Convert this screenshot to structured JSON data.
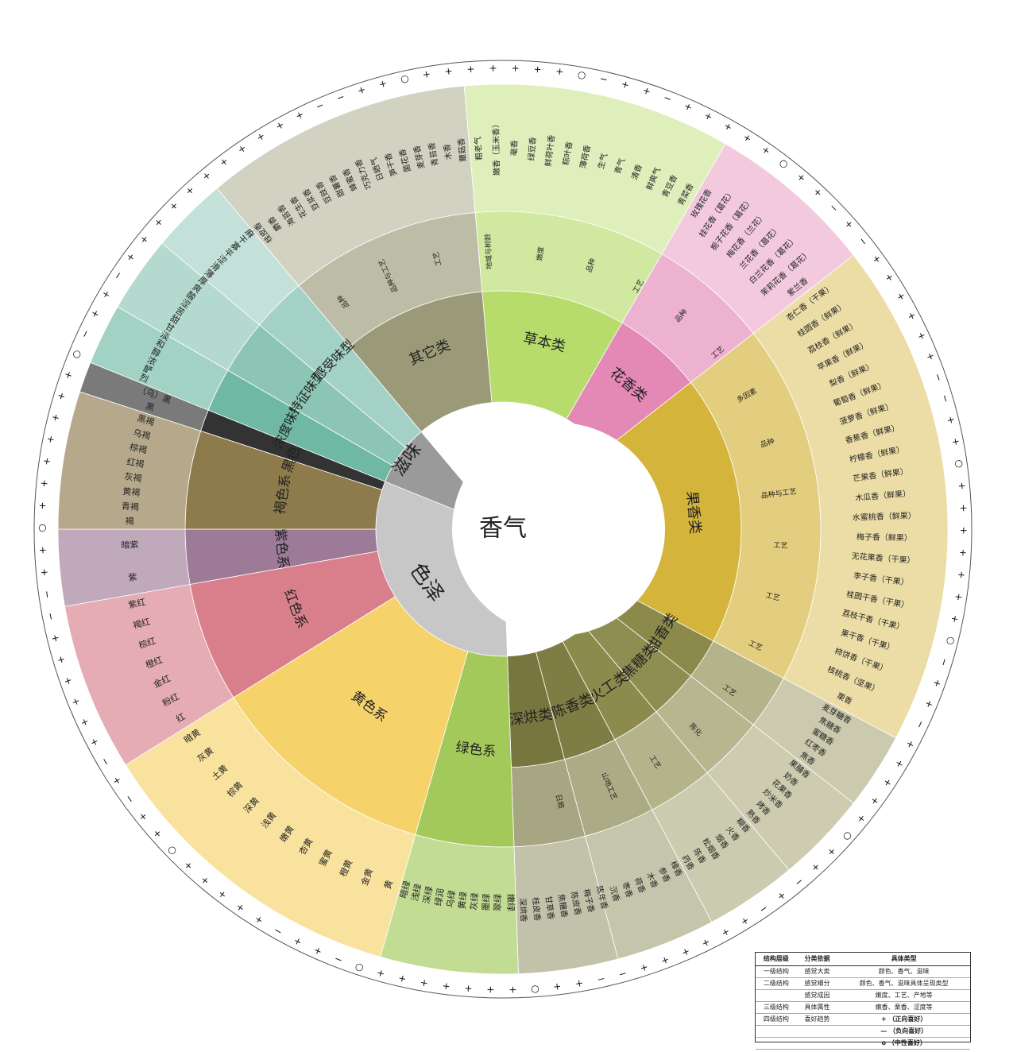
{
  "center": {
    "label": "香气"
  },
  "level1": [
    {
      "label": "香气",
      "color": "#ffffff"
    },
    {
      "label": "色泽",
      "color": "#c7c7c7"
    },
    {
      "label": "滋味",
      "color": "#9a9a9a"
    }
  ],
  "level2_color": [
    {
      "label": "绿色系",
      "color": "#a3c95a",
      "items": [
        "嫩绿",
        "翠绿",
        "墨绿",
        "灰绿",
        "黄绿",
        "乌绿",
        "绿润",
        "深绿",
        "浅绿",
        "暗绿"
      ]
    },
    {
      "label": "黄色系",
      "color": "#f6d26a",
      "items": [
        "黄",
        "金黄",
        "橙黄",
        "蜜黄",
        "杏黄",
        "嫩黄",
        "浅黄",
        "深黄",
        "棕黄",
        "土黄",
        "灰黄",
        "暗黄"
      ]
    },
    {
      "label": "红色系",
      "color": "#d97f8c",
      "items": [
        "红",
        "粉红",
        "金红",
        "橙红",
        "棕红",
        "褐红",
        "紫红"
      ]
    },
    {
      "label": "紫色系",
      "color": "#9d7a97",
      "items": [
        "紫",
        "暗紫"
      ]
    },
    {
      "label": "褐色系",
      "color": "#8e7b4c",
      "items": [
        "褐",
        "青褐",
        "黄褐",
        "灰褐",
        "红褐",
        "棕褐",
        "乌褐",
        "黑褐"
      ]
    },
    {
      "label": "黑色系",
      "color": "#333333",
      "items": [
        "黑",
        "（乌）黑"
      ]
    }
  ],
  "level2_taste": [
    {
      "label": "浓度味型",
      "color": "#6fb9a4"
    },
    {
      "label": "特征味型",
      "color": "#8cc5b3"
    },
    {
      "label": "感受味型",
      "color": "#a4d1c5"
    }
  ],
  "taste_items": [
    "烈",
    "酽",
    "浓",
    "醇",
    "和",
    "淡",
    "甘",
    "甜",
    "苦",
    "涩",
    "酸",
    "爽",
    "厚",
    "薄",
    "滑",
    "涩",
    "平",
    "寡",
    "干",
    "麻"
  ],
  "aroma_cats": [
    {
      "label": "其它类",
      "color": "#9a9a78"
    },
    {
      "label": "草本类",
      "color": "#b7dc6b"
    },
    {
      "label": "花香类",
      "color": "#e488b6"
    },
    {
      "label": "果香类",
      "color": "#d4b43a"
    },
    {
      "label": "甜香类",
      "color": "#8b8a4a"
    },
    {
      "label": "焦糖类",
      "color": "#8f8e52"
    },
    {
      "label": "火工类",
      "color": "#8c8b4d"
    },
    {
      "label": "陈香类",
      "color": "#7e7d44"
    },
    {
      "label": "深烘类",
      "color": "#77763f"
    }
  ],
  "level3_labels": [
    "品种",
    "品种与工艺",
    "工艺",
    "地域与树龄",
    "嫩度",
    "品种",
    "工艺",
    "品种",
    "工艺",
    "多因素",
    "品种",
    "品种与工艺",
    "工艺",
    "工艺",
    "工艺",
    "工艺",
    "陈化",
    "工艺",
    "山地工艺",
    "日照"
  ],
  "other_items": [
    "桂皮香",
    "麝香",
    "海苔香",
    "花生香",
    "豆浆香",
    "豆豉香",
    "甜薯香",
    "蜂蜜香",
    "巧克力香",
    "日晒气",
    "笋干香",
    "菌花香",
    "麦芽香",
    "青苔香",
    "木香",
    "蕈菇香"
  ],
  "herb_items": [
    "粗老气",
    "嫩香（玉米香）",
    "毫香",
    "绿豆香",
    "鲜荷叶香",
    "粽叶香",
    "薄荷香",
    "生气",
    "青气",
    "清香",
    "鲜爽气",
    "青豆香",
    "青菜香"
  ],
  "flower_items": [
    "玫瑰花香",
    "桂花香（葛花）",
    "栀子花香（葛花）",
    "梅花香（兰花）",
    "兰花香（葛花）",
    "白兰花香（葛花）",
    "茉莉花香（葛花）",
    "紫兰香"
  ],
  "fruit_items": [
    "杏仁香（干果）",
    "桂圆香（鲜果）",
    "荔枝香（鲜果）",
    "苹果香（鲜果）",
    "梨香（鲜果）",
    "葡萄香（鲜果）",
    "菠萝香（鲜果）",
    "香蕉香（鲜果）",
    "柠檬香（鲜果）",
    "芒果香（鲜果）",
    "木瓜香（鲜果）",
    "水蜜桃香（鲜果）",
    "梅子香（鲜果）",
    "无花果香（干果）",
    "李子香（干果）",
    "桂圆干香（干果）",
    "荔枝干香（干果）",
    "果干香（干果）",
    "柿饼香（干果）",
    "核桃香（坚果）",
    "栗香"
  ],
  "sweet_items": [
    "麦芽糖香",
    "焦糖香",
    "蜜糖香",
    "红枣香",
    "焦香",
    "果脯香",
    "奶香",
    "花果香",
    "炒米香",
    "烤香",
    "熟香",
    "糊香",
    "火香",
    "烟香",
    "松烟香",
    "陈香",
    "药香",
    "樟香",
    "参香",
    "木香",
    "荷香",
    "枣香",
    "沉香",
    "陈年香",
    "梅子香",
    "陈皮香",
    "焦糖香",
    "甘草香",
    "桂皮香",
    "深烘香"
  ],
  "trend_pattern": "++++++--++o+++++++o-++-+++++o++-+-",
  "legend": {
    "headers": [
      "结构层级",
      "分类依据",
      "具体类型"
    ],
    "rows": [
      [
        "一级结构",
        "感觉大类",
        "颜色、香气、滋味"
      ],
      [
        "二级结构",
        "感觉细分",
        "颜色、香气、滋味具体呈现类型"
      ],
      [
        "",
        "感觉成因",
        "嫩度、工艺、产地等"
      ],
      [
        "三级结构",
        "具体属性",
        "嫩香、栗香、涩度等"
      ],
      [
        "四级结构",
        "喜好趋势",
        "+ （正向喜好）"
      ],
      [
        "",
        "",
        "— （负向喜好）"
      ],
      [
        "",
        "",
        "o （中性喜好）"
      ]
    ]
  }
}
